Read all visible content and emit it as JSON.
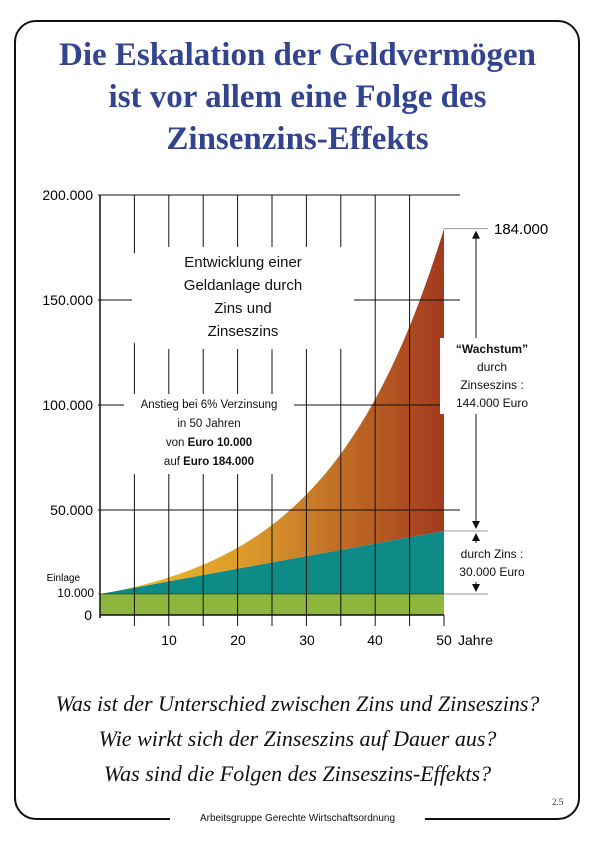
{
  "title": {
    "line1": "Die Eskalation der Geldvermögen",
    "line2": "ist vor allem eine Folge des",
    "line3": "Zinsenzins-Effekts"
  },
  "colors": {
    "title": "#33448e",
    "einlage": "#8db63c",
    "zins": "#0e8a87",
    "zinseszins_start": "#f3c62a",
    "zinseszins_end": "#a23a1e"
  },
  "chart_data": {
    "type": "area",
    "x": [
      0,
      5,
      10,
      15,
      20,
      25,
      30,
      35,
      40,
      45,
      50
    ],
    "xlim": [
      0,
      50
    ],
    "ylim": [
      0,
      200000
    ],
    "x_tick_labels": [
      "10",
      "20",
      "30",
      "40",
      "50"
    ],
    "x_unit": "Jahre",
    "y_tick_labels": [
      "0",
      "10.000",
      "50.000",
      "100.000",
      "150.000",
      "200.000"
    ],
    "y_extra_label": "Einlage",
    "series": [
      {
        "name": "Einlage",
        "values": [
          10000,
          10000,
          10000,
          10000,
          10000,
          10000,
          10000,
          10000,
          10000,
          10000,
          10000
        ]
      },
      {
        "name": "Zins",
        "values": [
          10000,
          13000,
          16000,
          19000,
          22000,
          25000,
          28000,
          31000,
          34000,
          37000,
          40000
        ]
      },
      {
        "name": "Zinseszins",
        "values": [
          10000,
          13382,
          17908,
          23966,
          32071,
          42919,
          57435,
          76861,
          102857,
          137646,
          184000
        ]
      }
    ],
    "end_value_label": "184.000",
    "annotations": {
      "box_title": [
        "Entwicklung einer",
        "Geldanlage durch",
        "Zins und",
        "Zinseszins"
      ],
      "anstieg": [
        "Anstieg bei 6% Verzinsung",
        "in 50 Jahren"
      ],
      "von_prefix": "von ",
      "von_value": "Euro 10.000",
      "auf_prefix": "auf ",
      "auf_value": "Euro 184.000",
      "wachstum_title": "“Wachstum”",
      "wachstum_lines": [
        "durch",
        "Zinseszins :",
        "144.000 Euro"
      ],
      "zins_lines": [
        "durch Zins :",
        "30.000 Euro"
      ]
    }
  },
  "questions": [
    "Was ist der Unterschied zwischen Zins und Zinseszins?",
    "Wie wirkt sich der Zinseszins auf Dauer aus?",
    "Was sind die Folgen des Zinseszins-Effekts?"
  ],
  "page_number": "2.5",
  "footer": "Arbeitsgruppe Gerechte Wirtschaftsordnung"
}
